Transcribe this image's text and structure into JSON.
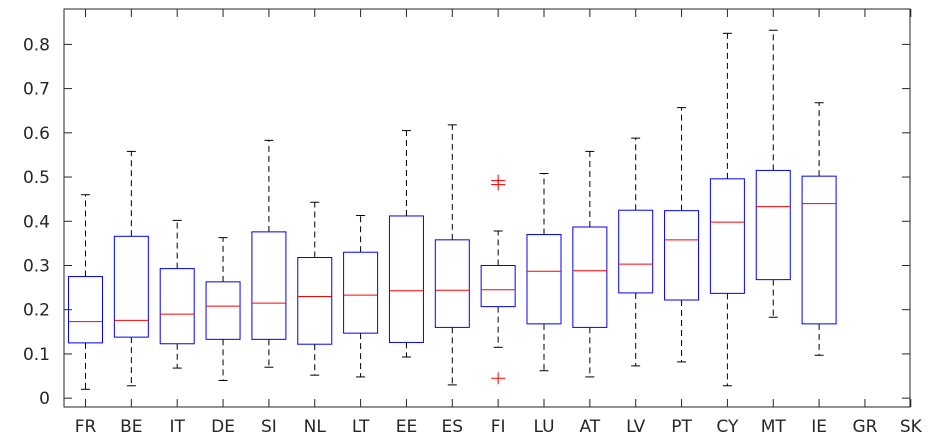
{
  "chart_data": {
    "type": "box",
    "categories": [
      "FR",
      "BE",
      "IT",
      "DE",
      "SI",
      "NL",
      "LT",
      "EE",
      "ES",
      "FI",
      "LU",
      "AT",
      "LV",
      "PT",
      "CY",
      "MT",
      "IE",
      "GR",
      "SK"
    ],
    "ylim": [
      -0.02,
      0.88
    ],
    "yticks": [
      0,
      0.1,
      0.2,
      0.3,
      0.4,
      0.5,
      0.6,
      0.7,
      0.8
    ],
    "ytick_labels": [
      "0",
      "0.1",
      "0.2",
      "0.3",
      "0.4",
      "0.5",
      "0.6",
      "0.7",
      "0.8"
    ],
    "grid": false,
    "colors": {
      "box": "#0000ff",
      "median": "#ff0000",
      "whisker": "#000000",
      "outlier": "#ff0000",
      "axis": "#262626"
    },
    "boxes": [
      {
        "cat": "FR",
        "whisker_low": 0.02,
        "q1": 0.125,
        "median": 0.173,
        "q3": 0.275,
        "whisker_high": 0.46,
        "outliers": []
      },
      {
        "cat": "BE",
        "whisker_low": 0.028,
        "q1": 0.138,
        "median": 0.176,
        "q3": 0.366,
        "whisker_high": 0.558,
        "outliers": []
      },
      {
        "cat": "IT",
        "whisker_low": 0.068,
        "q1": 0.123,
        "median": 0.19,
        "q3": 0.293,
        "whisker_high": 0.402,
        "outliers": []
      },
      {
        "cat": "DE",
        "whisker_low": 0.04,
        "q1": 0.133,
        "median": 0.208,
        "q3": 0.263,
        "whisker_high": 0.363,
        "outliers": []
      },
      {
        "cat": "SI",
        "whisker_low": 0.07,
        "q1": 0.133,
        "median": 0.215,
        "q3": 0.376,
        "whisker_high": 0.583,
        "outliers": []
      },
      {
        "cat": "NL",
        "whisker_low": 0.052,
        "q1": 0.122,
        "median": 0.23,
        "q3": 0.318,
        "whisker_high": 0.443,
        "outliers": []
      },
      {
        "cat": "LT",
        "whisker_low": 0.048,
        "q1": 0.147,
        "median": 0.233,
        "q3": 0.33,
        "whisker_high": 0.413,
        "outliers": []
      },
      {
        "cat": "EE",
        "whisker_low": 0.093,
        "q1": 0.126,
        "median": 0.243,
        "q3": 0.412,
        "whisker_high": 0.605,
        "outliers": []
      },
      {
        "cat": "ES",
        "whisker_low": 0.03,
        "q1": 0.16,
        "median": 0.244,
        "q3": 0.358,
        "whisker_high": 0.618,
        "outliers": []
      },
      {
        "cat": "FI",
        "whisker_low": 0.115,
        "q1": 0.207,
        "median": 0.245,
        "q3": 0.3,
        "whisker_high": 0.378,
        "outliers": [
          0.045,
          0.483,
          0.492
        ]
      },
      {
        "cat": "LU",
        "whisker_low": 0.062,
        "q1": 0.168,
        "median": 0.287,
        "q3": 0.37,
        "whisker_high": 0.508,
        "outliers": []
      },
      {
        "cat": "AT",
        "whisker_low": 0.048,
        "q1": 0.16,
        "median": 0.288,
        "q3": 0.387,
        "whisker_high": 0.558,
        "outliers": []
      },
      {
        "cat": "LV",
        "whisker_low": 0.073,
        "q1": 0.238,
        "median": 0.303,
        "q3": 0.425,
        "whisker_high": 0.588,
        "outliers": []
      },
      {
        "cat": "PT",
        "whisker_low": 0.082,
        "q1": 0.222,
        "median": 0.358,
        "q3": 0.424,
        "whisker_high": 0.657,
        "outliers": []
      },
      {
        "cat": "CY",
        "whisker_low": 0.028,
        "q1": 0.237,
        "median": 0.398,
        "q3": 0.496,
        "whisker_high": 0.825,
        "outliers": []
      },
      {
        "cat": "MT",
        "whisker_low": 0.183,
        "q1": 0.268,
        "median": 0.433,
        "q3": 0.515,
        "whisker_high": 0.832,
        "outliers": []
      },
      {
        "cat": "IE",
        "whisker_low": 0.097,
        "q1": 0.168,
        "median": 0.44,
        "q3": 0.502,
        "whisker_high": 0.668,
        "outliers": []
      }
    ]
  }
}
